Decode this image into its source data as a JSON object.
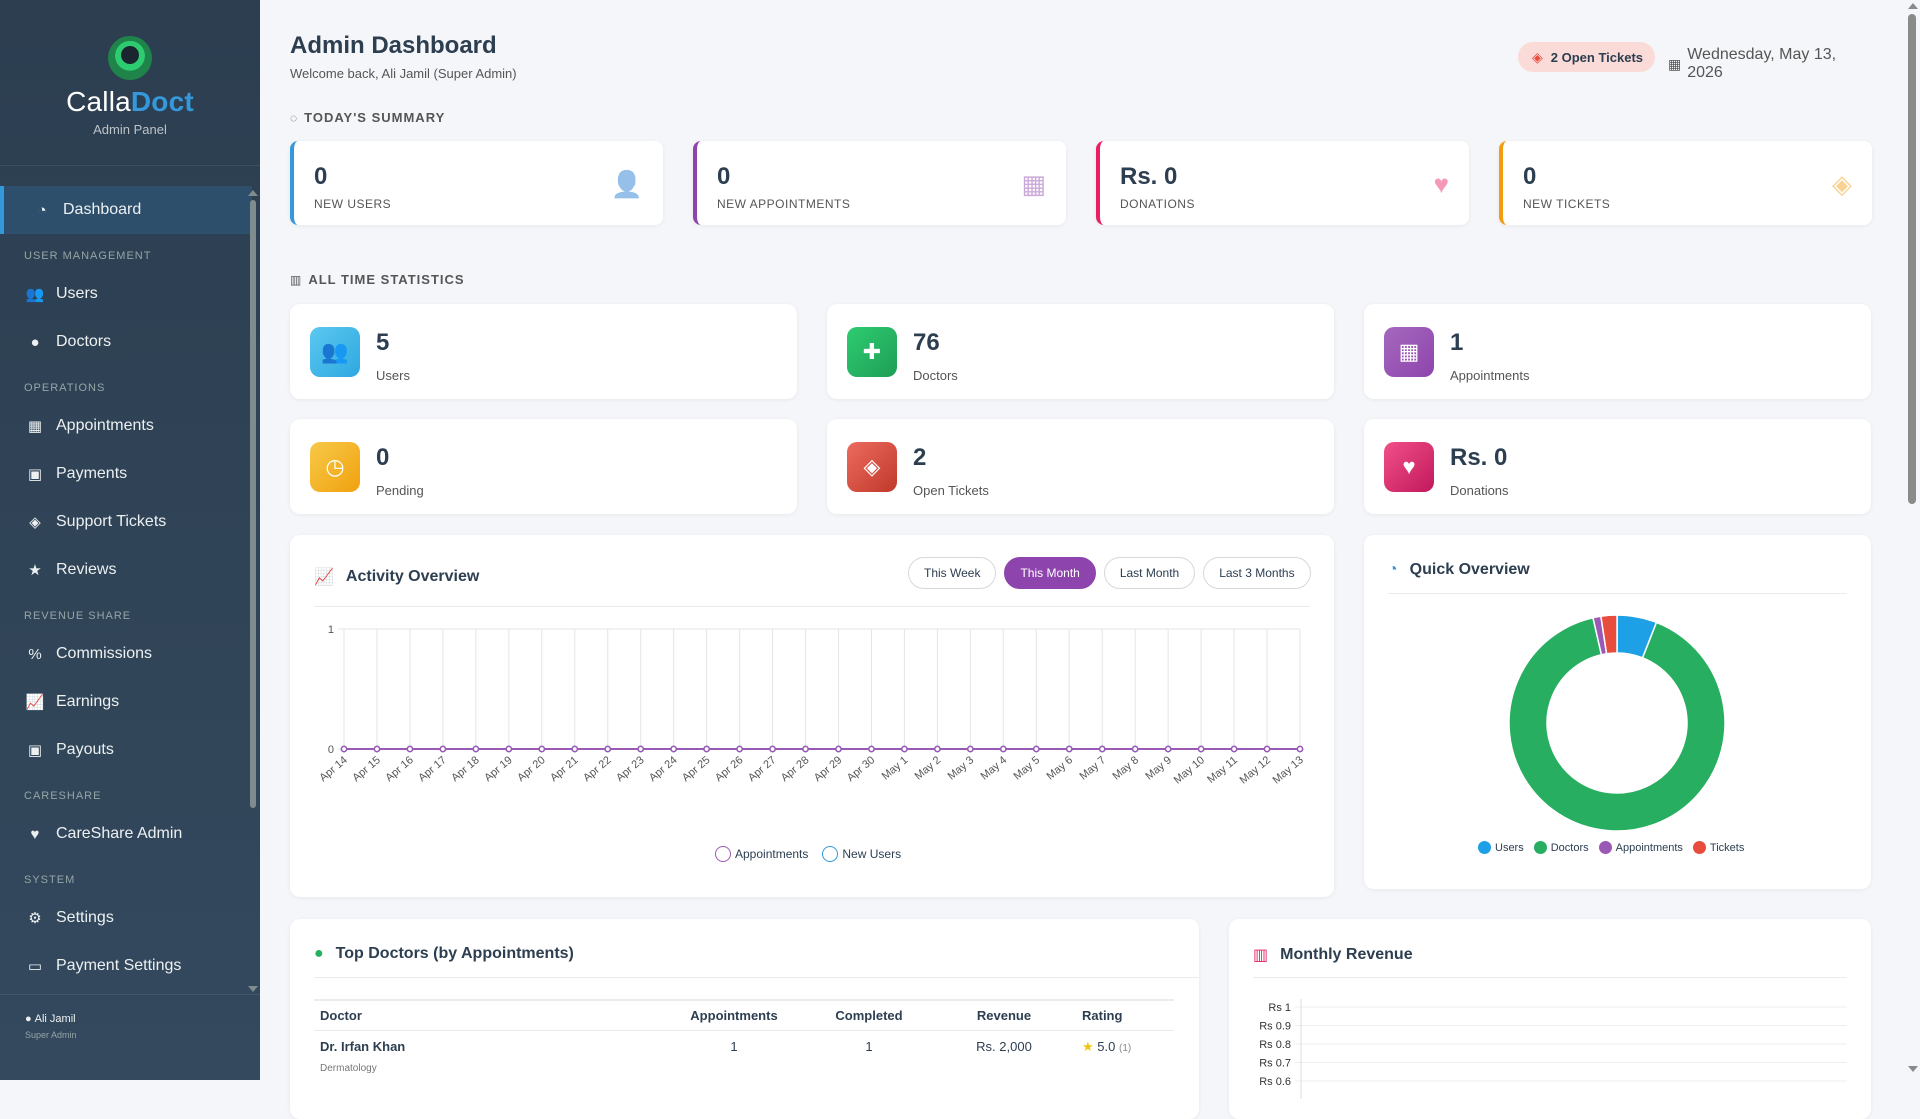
{
  "brand": {
    "name_part1": "Calla",
    "name_part2": "Doct",
    "subtitle": "Admin Panel"
  },
  "sidebar": {
    "dashboard": "Dashboard",
    "sections": {
      "user_management": "USER MANAGEMENT",
      "operations": "OPERATIONS",
      "revenue_share": "REVENUE SHARE",
      "careshare": "CARESHARE",
      "system": "SYSTEM"
    },
    "items": {
      "users": "Users",
      "doctors": "Doctors",
      "appointments": "Appointments",
      "payments": "Payments",
      "support_tickets": "Support Tickets",
      "reviews": "Reviews",
      "commissions": "Commissions",
      "earnings": "Earnings",
      "payouts": "Payouts",
      "careshare_admin": "CareShare Admin",
      "settings": "Settings",
      "payment_settings": "Payment Settings"
    },
    "user": {
      "name": "Ali Jamil",
      "role": "Super Admin"
    }
  },
  "header": {
    "title": "Admin Dashboard",
    "subtitle": "Welcome back, Ali Jamil (Super Admin)",
    "tickets_pill": "2 Open Tickets",
    "date": "Wednesday, May 13, 2026"
  },
  "summary": {
    "label": "TODAY'S SUMMARY",
    "cards": [
      {
        "value": "0",
        "label": "NEW USERS",
        "color": "#3498db",
        "icon": "user-plus-icon"
      },
      {
        "value": "0",
        "label": "NEW APPOINTMENTS",
        "color": "#8e44ad",
        "icon": "calendar-plus-icon"
      },
      {
        "value": "Rs. 0",
        "label": "DONATIONS",
        "color": "#e91e63",
        "icon": "heart-icon"
      },
      {
        "value": "0",
        "label": "NEW TICKETS",
        "color": "#f39c12",
        "icon": "ticket-icon"
      }
    ]
  },
  "all_time": {
    "label": "ALL TIME STATISTICS",
    "cards": [
      {
        "value": "5",
        "label": "Users",
        "color": "#3cb8e6",
        "icon": "users-icon"
      },
      {
        "value": "76",
        "label": "Doctors",
        "color": "#27ae60",
        "icon": "doctor-icon"
      },
      {
        "value": "1",
        "label": "Appointments",
        "color": "#9b59b6",
        "icon": "calendar-icon"
      },
      {
        "value": "0",
        "label": "Pending",
        "color": "#f1c40f",
        "icon": "clock-icon"
      },
      {
        "value": "2",
        "label": "Open Tickets",
        "color": "#e74c3c",
        "icon": "ticket-icon"
      },
      {
        "value": "Rs. 0",
        "label": "Donations",
        "color": "#e91e63",
        "icon": "heart-icon"
      }
    ]
  },
  "activity": {
    "title": "Activity Overview",
    "filters": [
      "This Week",
      "This Month",
      "Last Month",
      "Last 3 Months"
    ],
    "active_filter": "This Month"
  },
  "quick": {
    "title": "Quick Overview"
  },
  "top_doctors": {
    "title": "Top Doctors (by Appointments)",
    "columns": [
      "Doctor",
      "Appointments",
      "Completed",
      "Revenue",
      "Rating"
    ],
    "rows": [
      {
        "name": "Dr. Irfan Khan",
        "specialty": "Dermatology",
        "appointments": "1",
        "completed": "1",
        "revenue": "Rs. 2,000",
        "rating": "5.0",
        "rating_count": "(1)"
      }
    ]
  },
  "revenue": {
    "title": "Monthly Revenue"
  },
  "chart_data": [
    {
      "type": "line",
      "title": "Activity Overview",
      "x": [
        "Apr 14",
        "Apr 15",
        "Apr 16",
        "Apr 17",
        "Apr 18",
        "Apr 19",
        "Apr 20",
        "Apr 21",
        "Apr 22",
        "Apr 23",
        "Apr 24",
        "Apr 25",
        "Apr 26",
        "Apr 27",
        "Apr 28",
        "Apr 29",
        "Apr 30",
        "May 1",
        "May 2",
        "May 3",
        "May 4",
        "May 5",
        "May 6",
        "May 7",
        "May 8",
        "May 9",
        "May 10",
        "May 11",
        "May 12",
        "May 13"
      ],
      "series": [
        {
          "name": "Appointments",
          "color": "#9b59b6",
          "values": [
            0,
            0,
            0,
            0,
            0,
            0,
            0,
            0,
            0,
            0,
            0,
            0,
            0,
            0,
            0,
            0,
            0,
            0,
            0,
            0,
            0,
            0,
            0,
            0,
            0,
            0,
            0,
            0,
            0,
            0
          ]
        },
        {
          "name": "New Users",
          "color": "#3498db",
          "values": [
            0,
            0,
            0,
            0,
            0,
            0,
            0,
            0,
            0,
            0,
            0,
            0,
            0,
            0,
            0,
            0,
            0,
            0,
            0,
            0,
            0,
            0,
            0,
            0,
            0,
            0,
            0,
            0,
            0,
            0
          ]
        }
      ],
      "ylim": [
        0,
        1
      ],
      "yticks": [
        "0",
        "1"
      ],
      "grid": true,
      "legend": "bottom"
    },
    {
      "type": "pie",
      "title": "Quick Overview",
      "donut": true,
      "categories": [
        "Users",
        "Doctors",
        "Appointments",
        "Tickets"
      ],
      "values": [
        5,
        76,
        1,
        2
      ],
      "colors": [
        "#1ea0e6",
        "#27ae60",
        "#9b59b6",
        "#e74c3c"
      ],
      "legend": "bottom"
    },
    {
      "type": "line",
      "title": "Monthly Revenue",
      "yticks": [
        "Rs 1",
        "Rs 0.9",
        "Rs 0.8",
        "Rs 0.7",
        "Rs 0.6"
      ],
      "ylim": [
        0,
        1
      ],
      "grid": true
    }
  ]
}
